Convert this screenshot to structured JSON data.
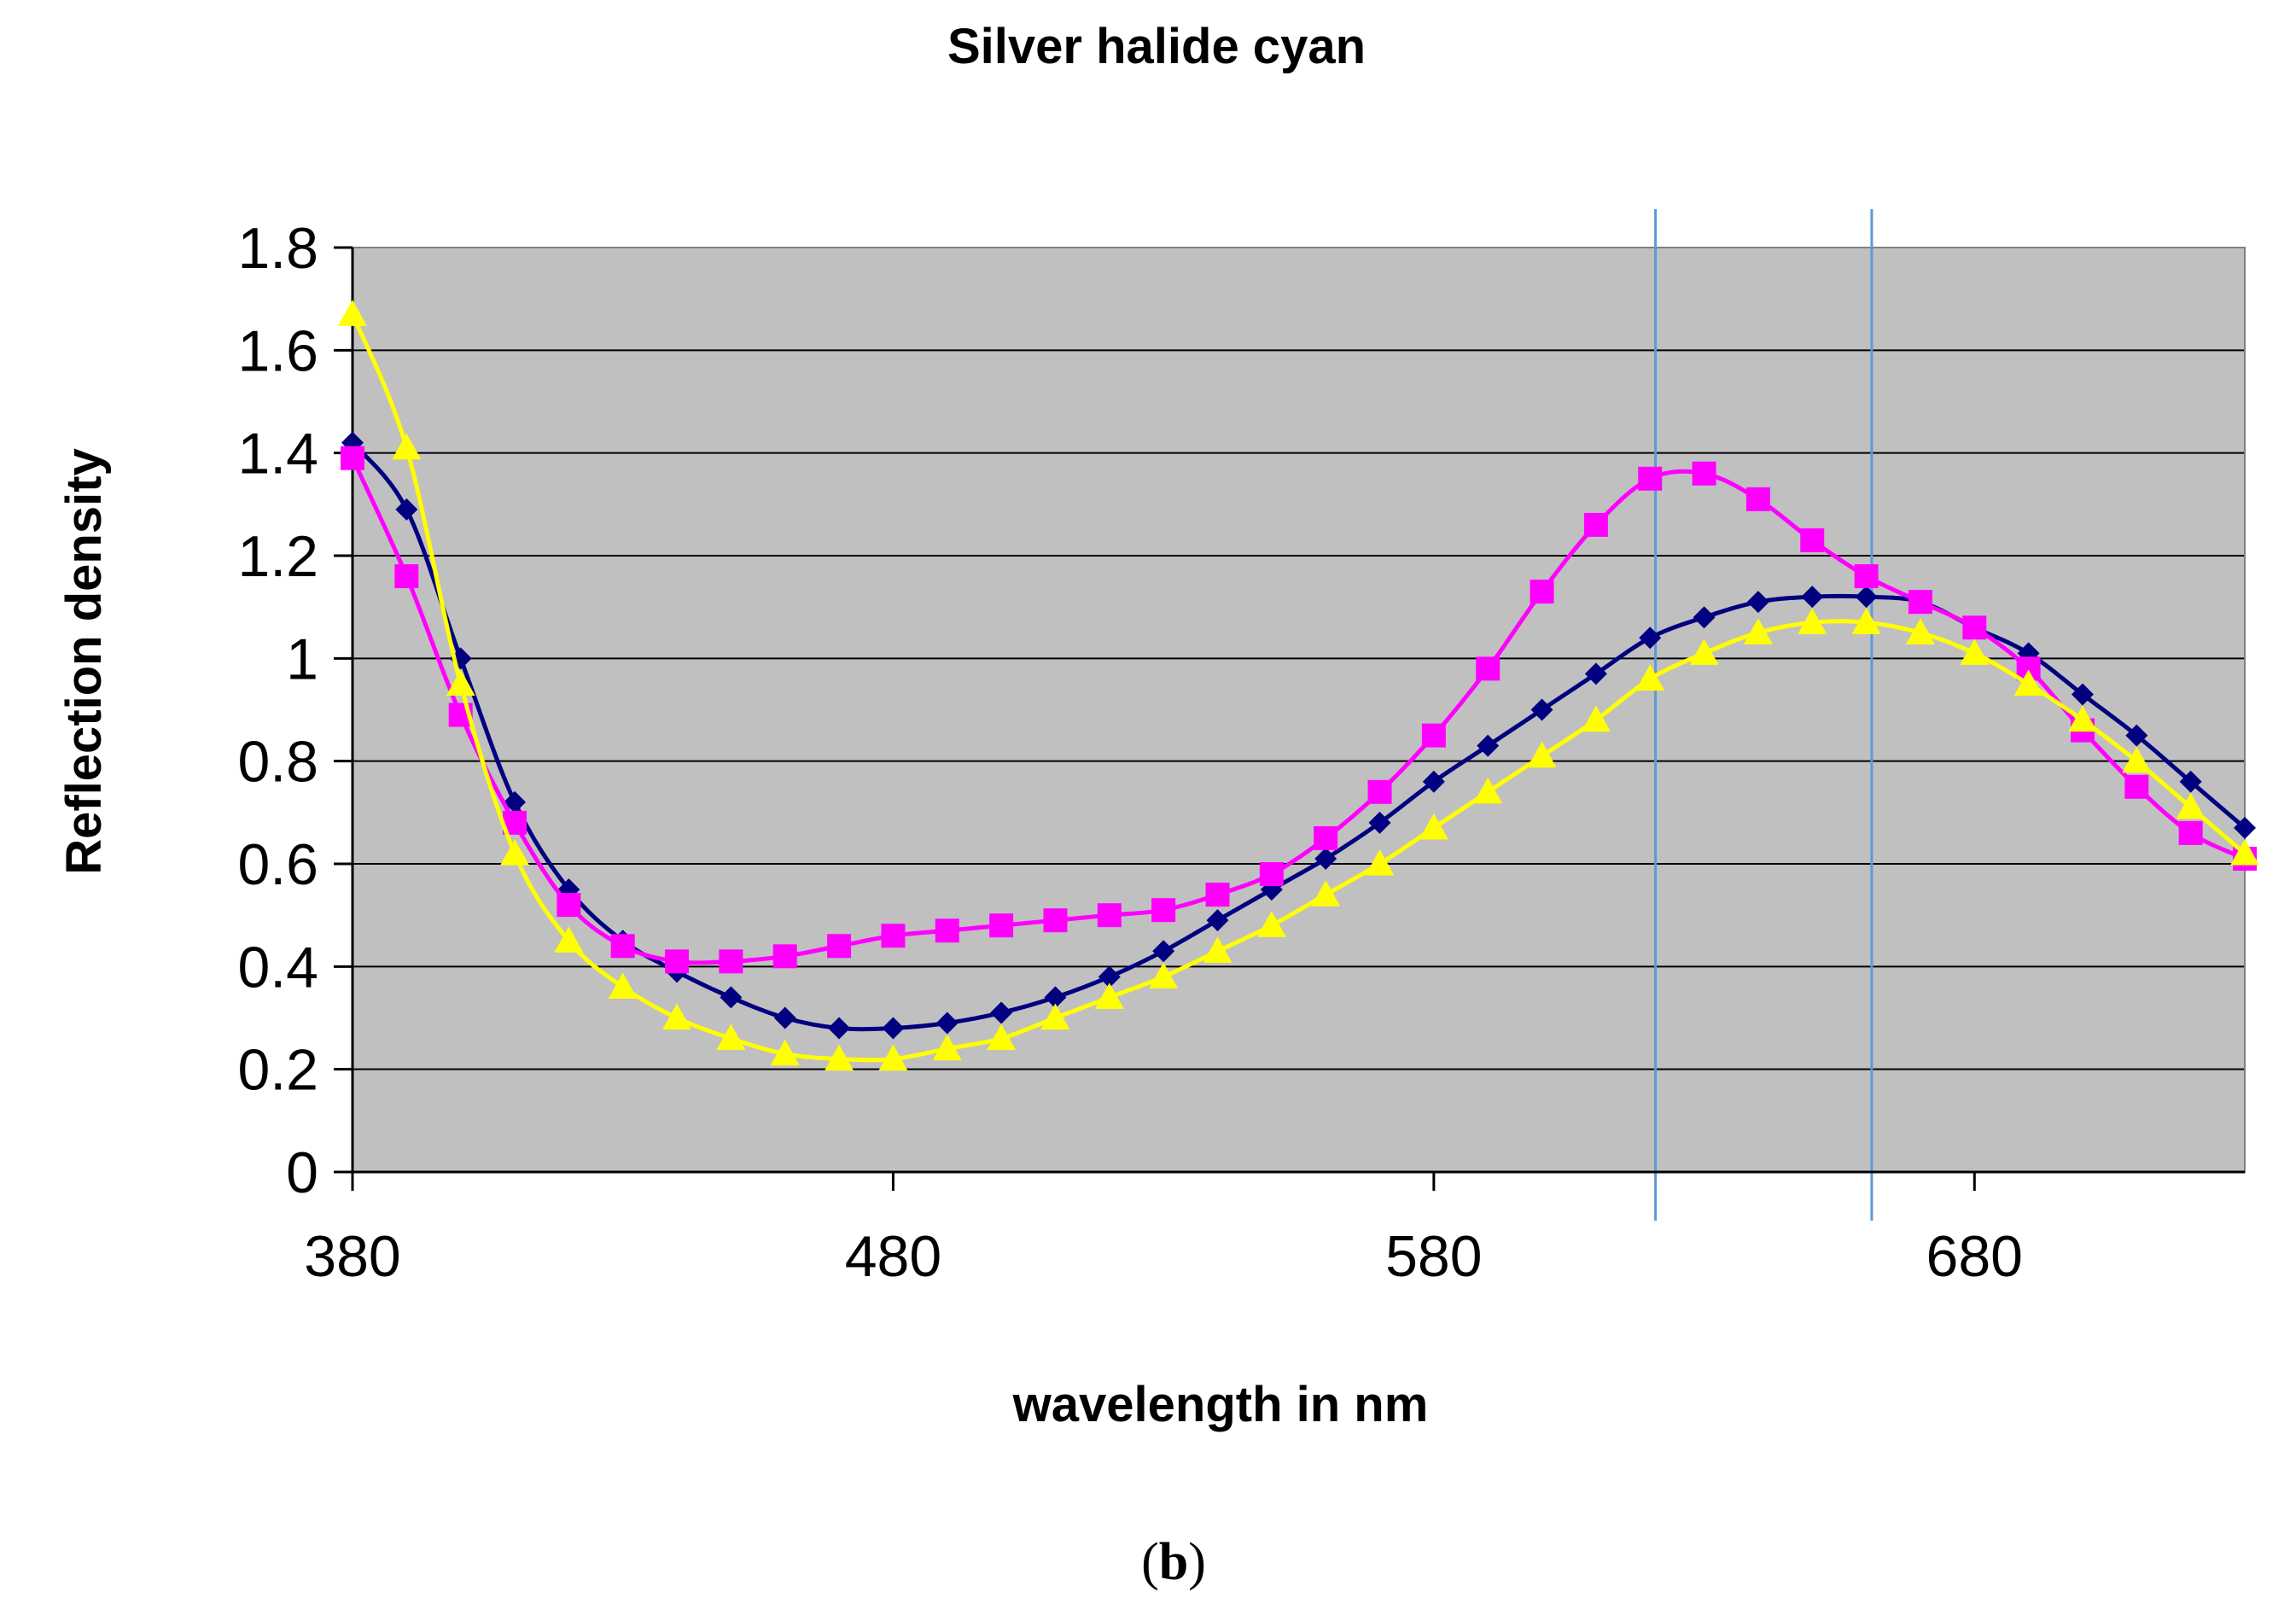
{
  "chart_data": {
    "type": "line",
    "title": "Silver halide cyan",
    "xlabel": "wavelength in nm",
    "ylabel": "Reflection density",
    "xlim": [
      380,
      730
    ],
    "ylim": [
      0,
      1.8
    ],
    "x_ticks": [
      "380",
      "480",
      "580",
      "680"
    ],
    "x_tick_values": [
      380,
      480,
      580,
      680
    ],
    "y_ticks": [
      "0",
      "0.2",
      "0.4",
      "0.6",
      "0.8",
      "1",
      "1.2",
      "1.4",
      "1.6",
      "1.8"
    ],
    "y_tick_values": [
      0,
      0.2,
      0.4,
      0.6,
      0.8,
      1.0,
      1.2,
      1.4,
      1.6,
      1.8
    ],
    "grid": "horizontal",
    "plot_background": "#c0c0c0",
    "legend": "none",
    "vertical_markers": [
      621,
      661
    ],
    "marker_color": "#5b9bd5",
    "x": [
      380,
      390,
      400,
      410,
      420,
      430,
      440,
      450,
      460,
      470,
      480,
      490,
      500,
      510,
      520,
      530,
      540,
      550,
      560,
      570,
      580,
      590,
      600,
      610,
      620,
      630,
      640,
      650,
      660,
      670,
      680,
      690,
      700,
      710,
      720,
      730
    ],
    "series": [
      {
        "color": "#000080",
        "marker": "diamond",
        "values": [
          1.42,
          1.29,
          1.0,
          0.72,
          0.55,
          0.45,
          0.39,
          0.34,
          0.3,
          0.28,
          0.28,
          0.29,
          0.31,
          0.34,
          0.38,
          0.43,
          0.49,
          0.55,
          0.61,
          0.68,
          0.76,
          0.83,
          0.9,
          0.97,
          1.04,
          1.08,
          1.11,
          1.12,
          1.12,
          1.11,
          1.06,
          1.01,
          0.93,
          0.85,
          0.76,
          0.67
        ]
      },
      {
        "color": "#ff00ff",
        "marker": "square",
        "values": [
          1.39,
          1.16,
          0.89,
          0.68,
          0.52,
          0.44,
          0.41,
          0.41,
          0.42,
          0.44,
          0.46,
          0.47,
          0.48,
          0.49,
          0.5,
          0.51,
          0.54,
          0.58,
          0.65,
          0.74,
          0.85,
          0.98,
          1.13,
          1.26,
          1.35,
          1.36,
          1.31,
          1.23,
          1.16,
          1.11,
          1.06,
          0.98,
          0.86,
          0.75,
          0.66,
          0.61
        ]
      },
      {
        "color": "#ffff00",
        "marker": "triangle",
        "values": [
          1.67,
          1.41,
          0.95,
          0.62,
          0.45,
          0.36,
          0.3,
          0.26,
          0.23,
          0.22,
          0.22,
          0.24,
          0.26,
          0.3,
          0.34,
          0.38,
          0.43,
          0.48,
          0.54,
          0.6,
          0.67,
          0.74,
          0.81,
          0.88,
          0.96,
          1.01,
          1.05,
          1.07,
          1.07,
          1.05,
          1.01,
          0.95,
          0.88,
          0.8,
          0.71,
          0.62
        ]
      }
    ]
  },
  "caption": {
    "open": "(",
    "letter": "b",
    "close": ")"
  }
}
